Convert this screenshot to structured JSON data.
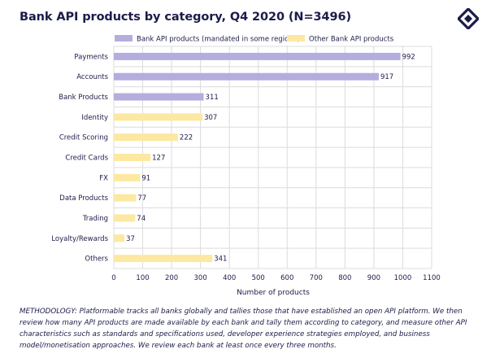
{
  "page": {
    "methodology": "METHODOLOGY: Platformable tracks all banks globally and tallies those that have established an open API platform. We then review how many API products are made available by each bank and tally them according to category, and measure other API characteristics such as standards and specifications used, developer experience strategies employed, and business model/monetisation approaches. We review each bank at least once every three months.",
    "logo_icon": "platformable-logo-icon"
  },
  "colors": {
    "mandated": "#b3aedd",
    "other": "#fce8a1",
    "grid": "#dcdcdc",
    "text": "#1c1c4a"
  },
  "chart_data": {
    "type": "bar",
    "orientation": "horizontal",
    "title": "Bank API products by category, Q4 2020 (N=3496)",
    "xlabel": "Number of products",
    "ylabel": "",
    "xlim": [
      0,
      1100
    ],
    "xticks": [
      0,
      100,
      200,
      300,
      400,
      500,
      600,
      700,
      800,
      900,
      1000,
      1100
    ],
    "grid": true,
    "legend_position": "top",
    "legend": [
      {
        "name": "Bank API products (mandated in some regions)",
        "color": "#b3aedd"
      },
      {
        "name": "Other Bank API products",
        "color": "#fce8a1"
      }
    ],
    "categories": [
      "Payments",
      "Accounts",
      "Bank Products",
      "Identity",
      "Credit Scoring",
      "Credit Cards",
      "FX",
      "Data Products",
      "Trading",
      "Loyalty/Rewards",
      "Others"
    ],
    "values": [
      992,
      917,
      311,
      307,
      222,
      127,
      91,
      77,
      74,
      37,
      341
    ],
    "groups": [
      "mandated",
      "mandated",
      "mandated",
      "other",
      "other",
      "other",
      "other",
      "other",
      "other",
      "other",
      "other"
    ]
  }
}
